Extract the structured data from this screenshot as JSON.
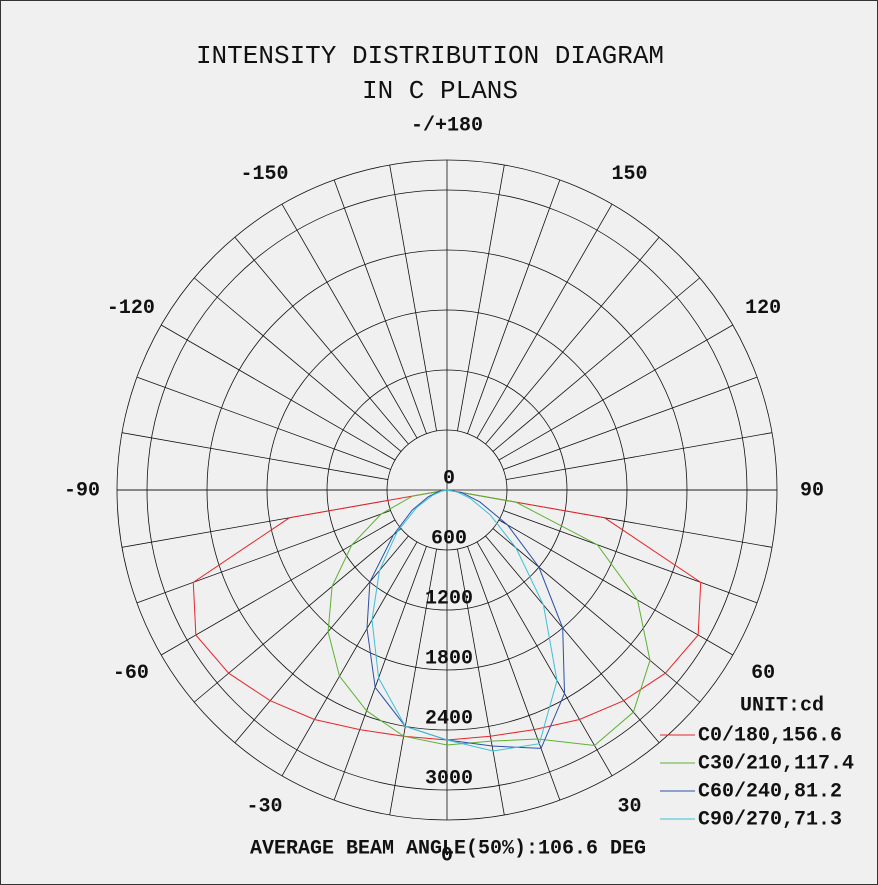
{
  "chart_data": {
    "type": "polar",
    "title": [
      "INTENSITY DISTRIBUTION DIAGRAM",
      "IN C PLANS"
    ],
    "unit_label": "UNIT:cd",
    "footer": "AVERAGE BEAM ANGLE(50%):106.6 DEG",
    "rlim": [
      0,
      3300
    ],
    "rticks": [
      0,
      600,
      1200,
      1800,
      2400,
      3000
    ],
    "thetaticks": [
      -150,
      -120,
      -90,
      -60,
      -30,
      0,
      30,
      60,
      90,
      120,
      150,
      {
        "value": 180,
        "label": "-/+180"
      }
    ],
    "theta_grid_step": 10,
    "theta": [
      -90,
      -80,
      -70,
      -60,
      -50,
      -40,
      -30,
      -20,
      -10,
      0,
      10,
      20,
      30,
      40,
      50,
      60,
      70,
      80,
      90
    ],
    "series": [
      {
        "name": "C0/180,156.6",
        "color": "#e8262a",
        "values": [
          0,
          1600,
          2700,
          2900,
          2850,
          2750,
          2650,
          2550,
          2500,
          2500,
          2500,
          2550,
          2650,
          2750,
          2850,
          2900,
          2700,
          1600,
          0
        ]
      },
      {
        "name": "C30/210,117.4",
        "color": "#5cb233",
        "values": [
          0,
          350,
          700,
          1100,
          1500,
          1850,
          2150,
          2350,
          2500,
          2550,
          2550,
          2650,
          2950,
          2900,
          2650,
          2200,
          1600,
          700,
          0
        ]
      },
      {
        "name": "C60/240,81.2",
        "color": "#2b4fa8",
        "values": [
          0,
          80,
          200,
          400,
          700,
          1200,
          1600,
          2100,
          2400,
          2500,
          2600,
          2750,
          2350,
          1800,
          1200,
          700,
          350,
          150,
          0
        ]
      },
      {
        "name": "C90/270,71.3",
        "color": "#3cc0d6",
        "values": [
          0,
          50,
          150,
          350,
          650,
          1050,
          1500,
          2000,
          2400,
          2500,
          2650,
          2700,
          2200,
          1500,
          900,
          500,
          250,
          100,
          0
        ]
      }
    ]
  }
}
